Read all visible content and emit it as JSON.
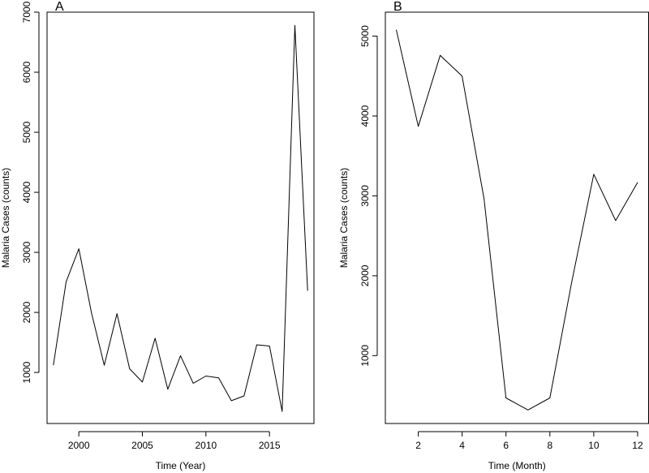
{
  "chart_data": [
    {
      "panel_label": "A",
      "type": "line",
      "xlabel": "Time (Year)",
      "ylabel": "Malaria Cases (counts)",
      "xlim": [
        1997.5,
        2018.5
      ],
      "ylim": [
        150,
        7000
      ],
      "xticks": [
        2000,
        2005,
        2010,
        2015
      ],
      "yticks": [
        1000,
        2000,
        3000,
        4000,
        5000,
        6000,
        7000
      ],
      "x": [
        1998,
        1999,
        2000,
        2001,
        2002,
        2003,
        2004,
        2005,
        2006,
        2007,
        2008,
        2009,
        2010,
        2011,
        2012,
        2013,
        2014,
        2015,
        2016,
        2017,
        2018
      ],
      "values": [
        1120,
        2510,
        3060,
        1990,
        1120,
        1980,
        1060,
        840,
        1570,
        720,
        1280,
        820,
        940,
        910,
        530,
        610,
        1460,
        1440,
        350,
        6780,
        2360
      ],
      "grid": false
    },
    {
      "panel_label": "B",
      "type": "line",
      "xlabel": "Time (Month)",
      "ylabel": "Malaria Cases (counts)",
      "xlim": [
        0.5,
        12.5
      ],
      "ylim": [
        150,
        5300
      ],
      "xticks": [
        2,
        4,
        6,
        8,
        10,
        12
      ],
      "yticks": [
        1000,
        2000,
        3000,
        4000,
        5000
      ],
      "x": [
        1,
        2,
        3,
        4,
        5,
        6,
        7,
        8,
        9,
        10,
        11,
        12
      ],
      "values": [
        5080,
        3870,
        4760,
        4500,
        2960,
        470,
        320,
        470,
        1930,
        3270,
        2690,
        3170
      ],
      "grid": false
    }
  ]
}
